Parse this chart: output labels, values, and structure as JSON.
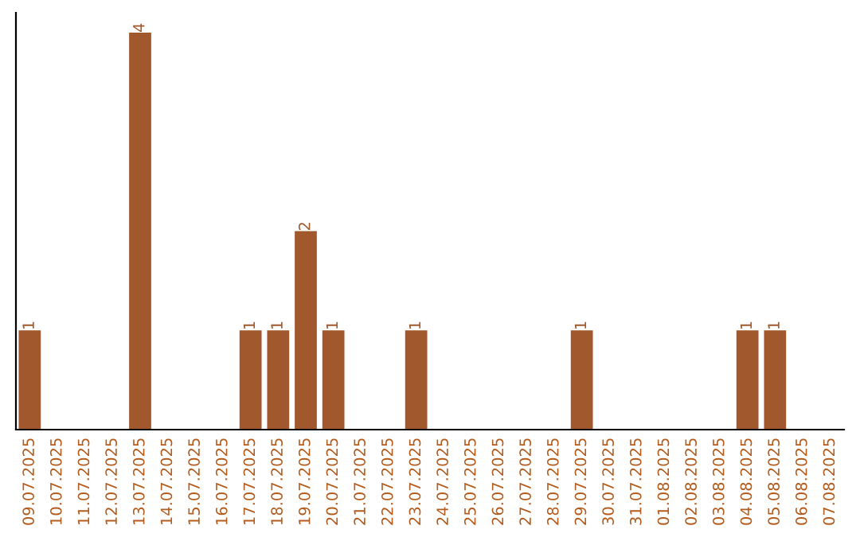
{
  "chart_data": {
    "type": "bar",
    "categories": [
      "09.07.2025",
      "10.07.2025",
      "11.07.2025",
      "12.07.2025",
      "13.07.2025",
      "14.07.2025",
      "15.07.2025",
      "16.07.2025",
      "17.07.2025",
      "18.07.2025",
      "19.07.2025",
      "20.07.2025",
      "21.07.2025",
      "22.07.2025",
      "23.07.2025",
      "24.07.2025",
      "25.07.2025",
      "26.07.2025",
      "27.07.2025",
      "28.07.2025",
      "29.07.2025",
      "30.07.2025",
      "31.07.2025",
      "01.08.2025",
      "02.08.2025",
      "03.08.2025",
      "04.08.2025",
      "05.08.2025",
      "06.08.2025",
      "07.08.2025"
    ],
    "values": [
      1,
      0,
      0,
      0,
      4,
      0,
      0,
      0,
      1,
      1,
      2,
      1,
      0,
      0,
      1,
      0,
      0,
      0,
      0,
      0,
      1,
      0,
      0,
      0,
      0,
      0,
      1,
      1,
      0,
      0
    ],
    "value_labels": [
      "1",
      null,
      null,
      null,
      "4",
      null,
      null,
      null,
      "1",
      "1",
      "2",
      "1",
      null,
      null,
      "1",
      null,
      null,
      null,
      null,
      null,
      "1",
      null,
      null,
      null,
      null,
      null,
      "1",
      "1",
      null,
      null
    ],
    "color": "#a0582c",
    "ylim": [
      0,
      4.2
    ],
    "tick_labels": "x",
    "grid": false,
    "legend": false
  }
}
